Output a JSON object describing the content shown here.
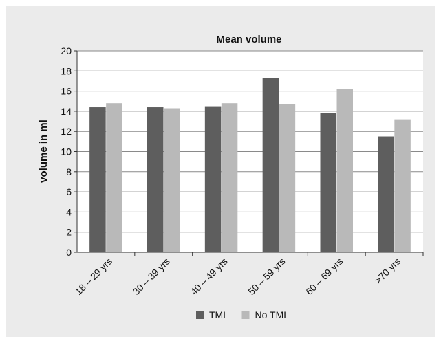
{
  "chart_data": {
    "type": "bar",
    "title": "Mean volume",
    "xlabel": "",
    "ylabel": "volume in ml",
    "categories": [
      "18 – 29 yrs",
      "30 – 39 yrs",
      "40 – 49 yrs",
      "50 – 59 yrs",
      "60 – 69 yrs",
      ">70 yrs"
    ],
    "series": [
      {
        "name": "TML",
        "values": [
          14.4,
          14.4,
          14.5,
          17.3,
          13.8,
          11.5
        ]
      },
      {
        "name": "No TML",
        "values": [
          14.8,
          14.3,
          14.8,
          14.7,
          16.2,
          13.2
        ]
      }
    ],
    "ylim": [
      0,
      20
    ],
    "yticks": [
      0,
      2,
      4,
      6,
      8,
      10,
      12,
      14,
      16,
      18,
      20
    ],
    "grid": true,
    "legend": "bottom",
    "colors": {
      "TML": "#5e5e5e",
      "No TML": "#b9b9b9",
      "panel": "#ebebeb",
      "plot": "#ffffff"
    }
  }
}
